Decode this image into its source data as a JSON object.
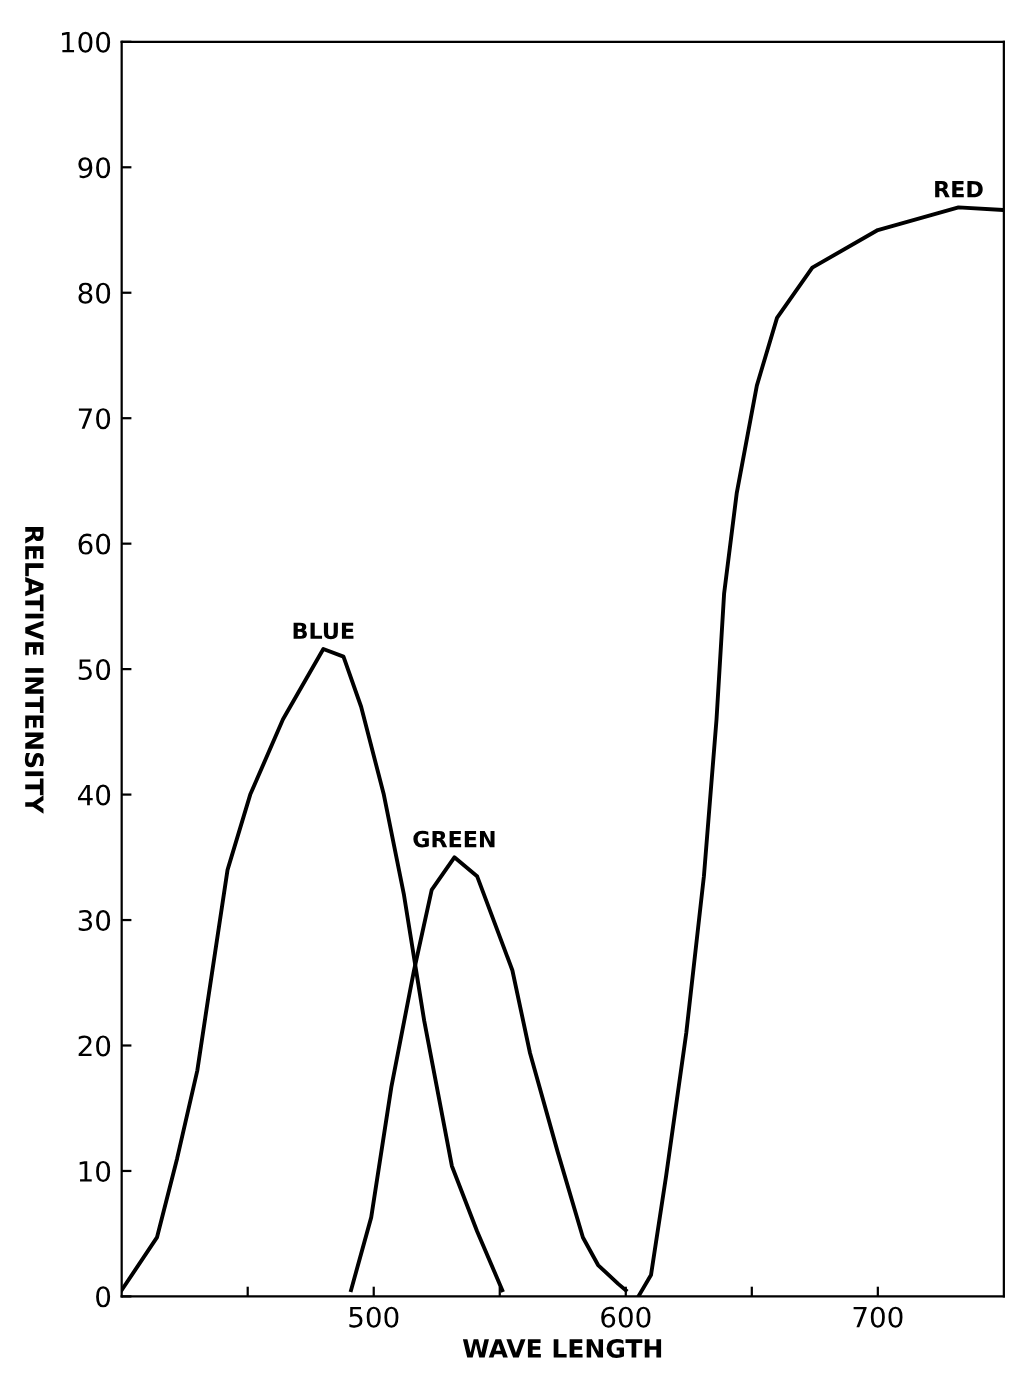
{
  "chart_data": {
    "type": "line",
    "xlabel": "WAVE LENGTH",
    "ylabel": "RELATIVE INTENSITY",
    "xlim": [
      400,
      750
    ],
    "ylim": [
      0,
      100
    ],
    "xticks": [
      {
        "value": 450,
        "label": null
      },
      500,
      {
        "value": 550,
        "label": null
      },
      600,
      {
        "value": 650,
        "label": null
      },
      700
    ],
    "yticks": [
      0,
      10,
      20,
      30,
      40,
      50,
      60,
      70,
      80,
      90,
      100
    ],
    "grid": false,
    "legend": false,
    "marker": "none",
    "line_style": "solid",
    "series": [
      {
        "name": "BLUE",
        "color": "#000000",
        "x": [
          400,
          414,
          422,
          430,
          442,
          451,
          464,
          480,
          488,
          495,
          504,
          512,
          520,
          531,
          541,
          551
        ],
        "values": [
          0.5,
          4.7,
          11,
          18,
          34,
          40,
          46,
          51.6,
          51,
          47,
          40,
          32,
          22,
          10.4,
          5.2,
          0.5
        ]
      },
      {
        "name": "GREEN",
        "color": "#000000",
        "x": [
          491,
          499,
          507,
          516,
          523,
          532,
          541,
          555,
          562,
          573,
          583,
          589,
          597,
          600
        ],
        "values": [
          0.5,
          6.3,
          16.7,
          26,
          32.4,
          35,
          33.5,
          26,
          19.4,
          11.5,
          4.7,
          2.5,
          1,
          0.5
        ]
      },
      {
        "name": "RED",
        "color": "#000000",
        "x": [
          605,
          610,
          616,
          624,
          631,
          636,
          639,
          644,
          652,
          660,
          674,
          700,
          732,
          749
        ],
        "values": [
          0,
          1.7,
          9.6,
          21,
          33.5,
          46,
          56,
          64,
          72.6,
          78,
          82,
          85,
          86.8,
          86.6
        ]
      }
    ]
  }
}
